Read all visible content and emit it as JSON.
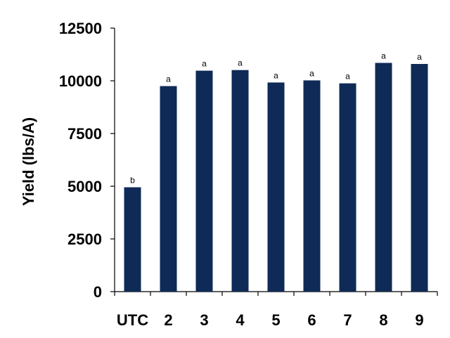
{
  "chart_data": {
    "type": "bar",
    "title": "",
    "xlabel": "",
    "ylabel": "Yield (lbs/A)",
    "categories": [
      "UTC",
      "2",
      "3",
      "4",
      "5",
      "6",
      "7",
      "8",
      "9"
    ],
    "values": [
      4950,
      9750,
      10480,
      10510,
      9920,
      10020,
      9880,
      10850,
      10800
    ],
    "significance_letters": [
      "b",
      "a",
      "a",
      "a",
      "a",
      "a",
      "a",
      "a",
      "a"
    ],
    "ylim": [
      0,
      12500
    ],
    "yticks": [
      "0",
      "2500",
      "5000",
      "7500",
      "10000",
      "12500"
    ],
    "bar_color": "#0f2a56",
    "grid": false,
    "legend": "none"
  }
}
